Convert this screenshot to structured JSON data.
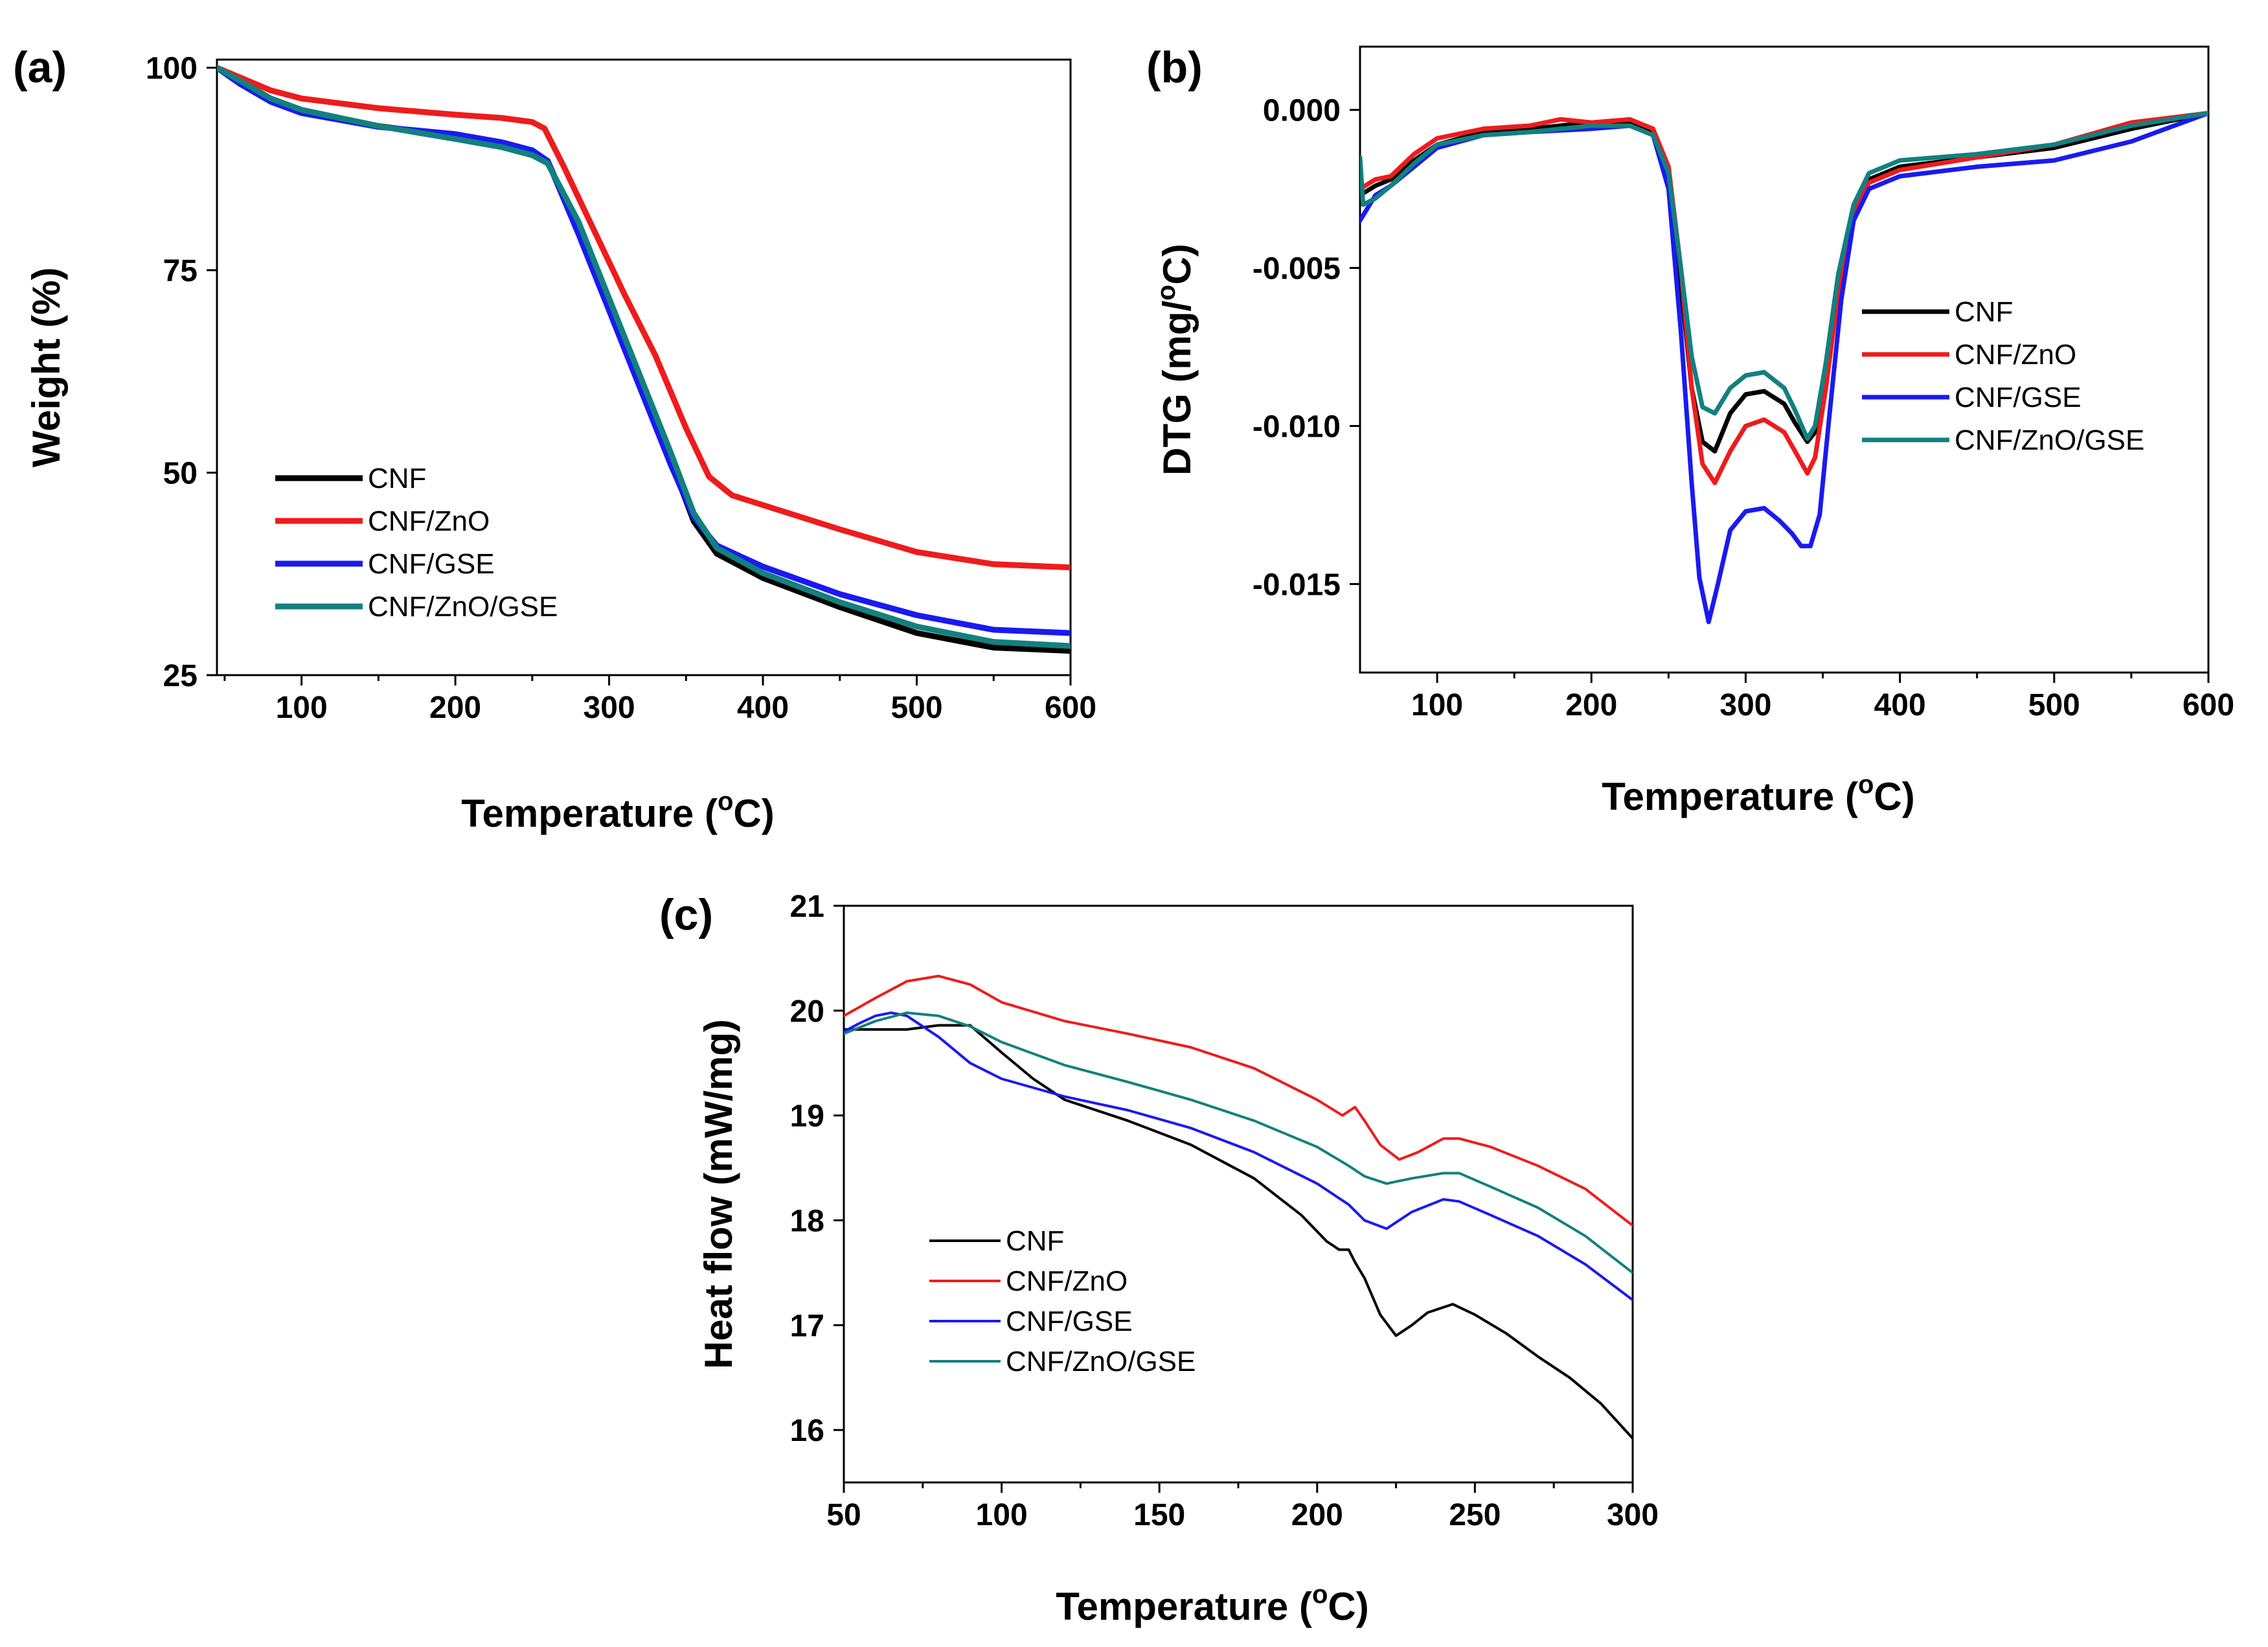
{
  "colors": {
    "CNF": "#000000",
    "CNF/ZnO": "#ee1c1c",
    "CNF/GSE": "#1a1af0",
    "CNF/ZnO/GSE": "#138080"
  },
  "chart_data": [
    {
      "id": "a",
      "type": "line",
      "panel_label": "(a)",
      "title": "",
      "xlabel": "Temperature (",
      "xlabel_unit": "C)",
      "xlabel_degree": "o",
      "ylabel": "Weight (%)",
      "xlim": [
        45,
        600
      ],
      "ylim": [
        25,
        101
      ],
      "xticks": [
        100,
        200,
        300,
        400,
        500,
        600
      ],
      "yticks": [
        25,
        50,
        75,
        100
      ],
      "legend_position": "lower-left",
      "series": [
        {
          "name": "CNF",
          "x": [
            45,
            60,
            80,
            100,
            150,
            200,
            230,
            250,
            260,
            280,
            300,
            320,
            340,
            355,
            370,
            400,
            450,
            500,
            550,
            600
          ],
          "y": [
            100,
            98.2,
            96,
            94.6,
            92.8,
            91.5,
            90.5,
            89.5,
            88.5,
            80,
            70.5,
            61,
            51.5,
            44,
            40,
            37,
            33.4,
            30.2,
            28.4,
            28
          ]
        },
        {
          "name": "CNF/ZnO",
          "x": [
            45,
            60,
            80,
            100,
            150,
            200,
            230,
            250,
            258,
            270,
            290,
            310,
            330,
            350,
            365,
            380,
            400,
            450,
            500,
            550,
            600
          ],
          "y": [
            100,
            98.8,
            97.2,
            96.2,
            95,
            94.2,
            93.8,
            93.3,
            92.5,
            88,
            80,
            72,
            64.5,
            55.5,
            49.5,
            47.2,
            46,
            43,
            40.2,
            38.7,
            38.3
          ]
        },
        {
          "name": "CNF/GSE",
          "x": [
            45,
            60,
            80,
            100,
            150,
            200,
            230,
            250,
            260,
            280,
            300,
            320,
            340,
            355,
            370,
            400,
            450,
            500,
            550,
            600
          ],
          "y": [
            100,
            98,
            95.8,
            94.4,
            92.7,
            91.8,
            90.8,
            89.8,
            88.5,
            79.5,
            70,
            60.5,
            51,
            44.5,
            41,
            38.4,
            35,
            32.4,
            30.6,
            30.2
          ]
        },
        {
          "name": "CNF/ZnO/GSE",
          "x": [
            45,
            60,
            80,
            100,
            150,
            200,
            230,
            250,
            260,
            280,
            300,
            320,
            340,
            355,
            370,
            400,
            450,
            500,
            550,
            600
          ],
          "y": [
            100,
            98.4,
            96.2,
            94.8,
            92.8,
            91.2,
            90.2,
            89.2,
            88.2,
            81,
            71.5,
            62,
            52.5,
            45,
            40.7,
            37.6,
            34,
            31,
            29.1,
            28.6
          ]
        }
      ]
    },
    {
      "id": "b",
      "type": "line",
      "panel_label": "(b)",
      "title": "",
      "xlabel": "Temperature (",
      "xlabel_unit": "C)",
      "xlabel_degree": "o",
      "ylabel": "DTG (mg/",
      "ylabel_unit": "C)",
      "ylabel_degree": "o",
      "xlim": [
        50,
        600
      ],
      "ylim": [
        -0.0178,
        0.002
      ],
      "xticks": [
        100,
        200,
        300,
        400,
        500,
        600
      ],
      "yticks": [
        0.0,
        -0.005,
        -0.01,
        -0.015
      ],
      "ytick_labels": [
        "0.000",
        "-0.005",
        "-0.010",
        "-0.015"
      ],
      "legend_position": "right-middle",
      "series": [
        {
          "name": "CNF",
          "x": [
            50,
            60,
            70,
            85,
            100,
            130,
            160,
            200,
            225,
            240,
            250,
            258,
            265,
            272,
            280,
            290,
            300,
            312,
            325,
            332,
            340,
            345,
            352,
            360,
            370,
            380,
            400,
            450,
            500,
            550,
            600
          ],
          "y": [
            -0.0027,
            -0.0024,
            -0.0022,
            -0.0016,
            -0.0011,
            -0.0007,
            -0.0006,
            -0.0004,
            -0.0004,
            -0.0007,
            -0.0022,
            -0.0055,
            -0.0088,
            -0.0105,
            -0.0108,
            -0.0096,
            -0.009,
            -0.0089,
            -0.0093,
            -0.0099,
            -0.0105,
            -0.0102,
            -0.0082,
            -0.0055,
            -0.0032,
            -0.0022,
            -0.0018,
            -0.0015,
            -0.0012,
            -0.0006,
            -0.0001
          ]
        },
        {
          "name": "CNF/ZnO",
          "x": [
            50,
            60,
            70,
            85,
            100,
            130,
            160,
            180,
            200,
            225,
            240,
            250,
            258,
            265,
            272,
            280,
            290,
            300,
            312,
            325,
            332,
            340,
            345,
            352,
            360,
            370,
            380,
            400,
            450,
            500,
            550,
            600
          ],
          "y": [
            -0.0025,
            -0.0022,
            -0.0021,
            -0.0014,
            -0.0009,
            -0.0006,
            -0.0005,
            -0.0003,
            -0.0004,
            -0.0003,
            -0.0006,
            -0.0018,
            -0.005,
            -0.0088,
            -0.0112,
            -0.0118,
            -0.0108,
            -0.01,
            -0.0098,
            -0.0102,
            -0.0108,
            -0.0115,
            -0.011,
            -0.0088,
            -0.0058,
            -0.0032,
            -0.0023,
            -0.0019,
            -0.0015,
            -0.0011,
            -0.0004,
            -0.0001
          ]
        },
        {
          "name": "CNF/GSE",
          "x": [
            50,
            60,
            70,
            85,
            100,
            130,
            160,
            200,
            225,
            240,
            250,
            258,
            265,
            270,
            276,
            282,
            290,
            300,
            312,
            322,
            330,
            336,
            342,
            348,
            354,
            362,
            370,
            380,
            400,
            450,
            500,
            550,
            600
          ],
          "y": [
            -0.0035,
            -0.0027,
            -0.0024,
            -0.0018,
            -0.0012,
            -0.0008,
            -0.0007,
            -0.0006,
            -0.0005,
            -0.0008,
            -0.0025,
            -0.007,
            -0.0118,
            -0.0148,
            -0.0162,
            -0.015,
            -0.0133,
            -0.0127,
            -0.0126,
            -0.013,
            -0.0134,
            -0.0138,
            -0.0138,
            -0.0128,
            -0.0098,
            -0.006,
            -0.0035,
            -0.0025,
            -0.0021,
            -0.0018,
            -0.0016,
            -0.001,
            -0.0001
          ]
        },
        {
          "name": "CNF/ZnO/GSE",
          "x": [
            50,
            52,
            60,
            70,
            85,
            100,
            130,
            160,
            200,
            225,
            240,
            250,
            258,
            265,
            272,
            280,
            290,
            300,
            312,
            325,
            332,
            340,
            345,
            352,
            360,
            370,
            380,
            400,
            450,
            500,
            550,
            600
          ],
          "y": [
            -0.0015,
            -0.003,
            -0.0028,
            -0.0024,
            -0.0017,
            -0.0011,
            -0.0008,
            -0.0007,
            -0.0005,
            -0.0005,
            -0.0008,
            -0.002,
            -0.005,
            -0.0078,
            -0.0094,
            -0.0096,
            -0.0088,
            -0.0084,
            -0.0083,
            -0.0088,
            -0.0095,
            -0.0104,
            -0.01,
            -0.008,
            -0.0052,
            -0.003,
            -0.002,
            -0.0016,
            -0.0014,
            -0.0011,
            -0.0005,
            -0.0001
          ]
        }
      ]
    },
    {
      "id": "c",
      "type": "line",
      "panel_label": "(c)",
      "title": "",
      "xlabel": "Temperature (",
      "xlabel_unit": "C)",
      "xlabel_degree": "o",
      "ylabel": "Heat flow (mW/mg)",
      "xlim": [
        50,
        300
      ],
      "ylim": [
        15.5,
        21
      ],
      "xticks": [
        50,
        100,
        150,
        200,
        250,
        300
      ],
      "yticks": [
        16,
        17,
        18,
        19,
        20,
        21
      ],
      "legend_position": "lower-left",
      "series": [
        {
          "name": "CNF",
          "x": [
            50,
            60,
            70,
            80,
            90,
            100,
            110,
            120,
            140,
            160,
            180,
            195,
            203,
            207,
            210,
            212,
            215,
            220,
            225,
            230,
            235,
            243,
            250,
            260,
            270,
            280,
            290,
            300
          ],
          "y": [
            19.82,
            19.82,
            19.82,
            19.86,
            19.86,
            19.6,
            19.35,
            19.15,
            18.95,
            18.72,
            18.4,
            18.05,
            17.8,
            17.72,
            17.72,
            17.6,
            17.45,
            17.1,
            16.9,
            17.0,
            17.12,
            17.2,
            17.1,
            16.92,
            16.7,
            16.5,
            16.25,
            15.92
          ]
        },
        {
          "name": "CNF/ZnO",
          "x": [
            50,
            60,
            70,
            80,
            90,
            100,
            120,
            140,
            160,
            180,
            200,
            208,
            212,
            215,
            220,
            226,
            232,
            240,
            245,
            255,
            270,
            285,
            300
          ],
          "y": [
            19.95,
            20.12,
            20.28,
            20.33,
            20.25,
            20.08,
            19.9,
            19.78,
            19.65,
            19.45,
            19.15,
            19.0,
            19.08,
            18.95,
            18.72,
            18.58,
            18.65,
            18.78,
            18.78,
            18.7,
            18.52,
            18.3,
            17.95
          ]
        },
        {
          "name": "CNF/GSE",
          "x": [
            50,
            55,
            60,
            65,
            70,
            80,
            90,
            100,
            120,
            140,
            160,
            180,
            200,
            210,
            215,
            222,
            230,
            240,
            245,
            255,
            270,
            285,
            300
          ],
          "y": [
            19.8,
            19.88,
            19.95,
            19.98,
            19.95,
            19.75,
            19.5,
            19.35,
            19.18,
            19.05,
            18.88,
            18.65,
            18.35,
            18.15,
            18.0,
            17.92,
            18.08,
            18.2,
            18.18,
            18.05,
            17.85,
            17.58,
            17.24
          ]
        },
        {
          "name": "CNF/ZnO/GSE",
          "x": [
            50,
            60,
            70,
            80,
            90,
            100,
            120,
            140,
            160,
            180,
            200,
            210,
            215,
            222,
            230,
            240,
            245,
            255,
            270,
            285,
            300
          ],
          "y": [
            19.78,
            19.9,
            19.98,
            19.95,
            19.85,
            19.7,
            19.48,
            19.32,
            19.15,
            18.95,
            18.7,
            18.52,
            18.42,
            18.35,
            18.4,
            18.45,
            18.45,
            18.32,
            18.12,
            17.85,
            17.5
          ]
        }
      ]
    }
  ]
}
